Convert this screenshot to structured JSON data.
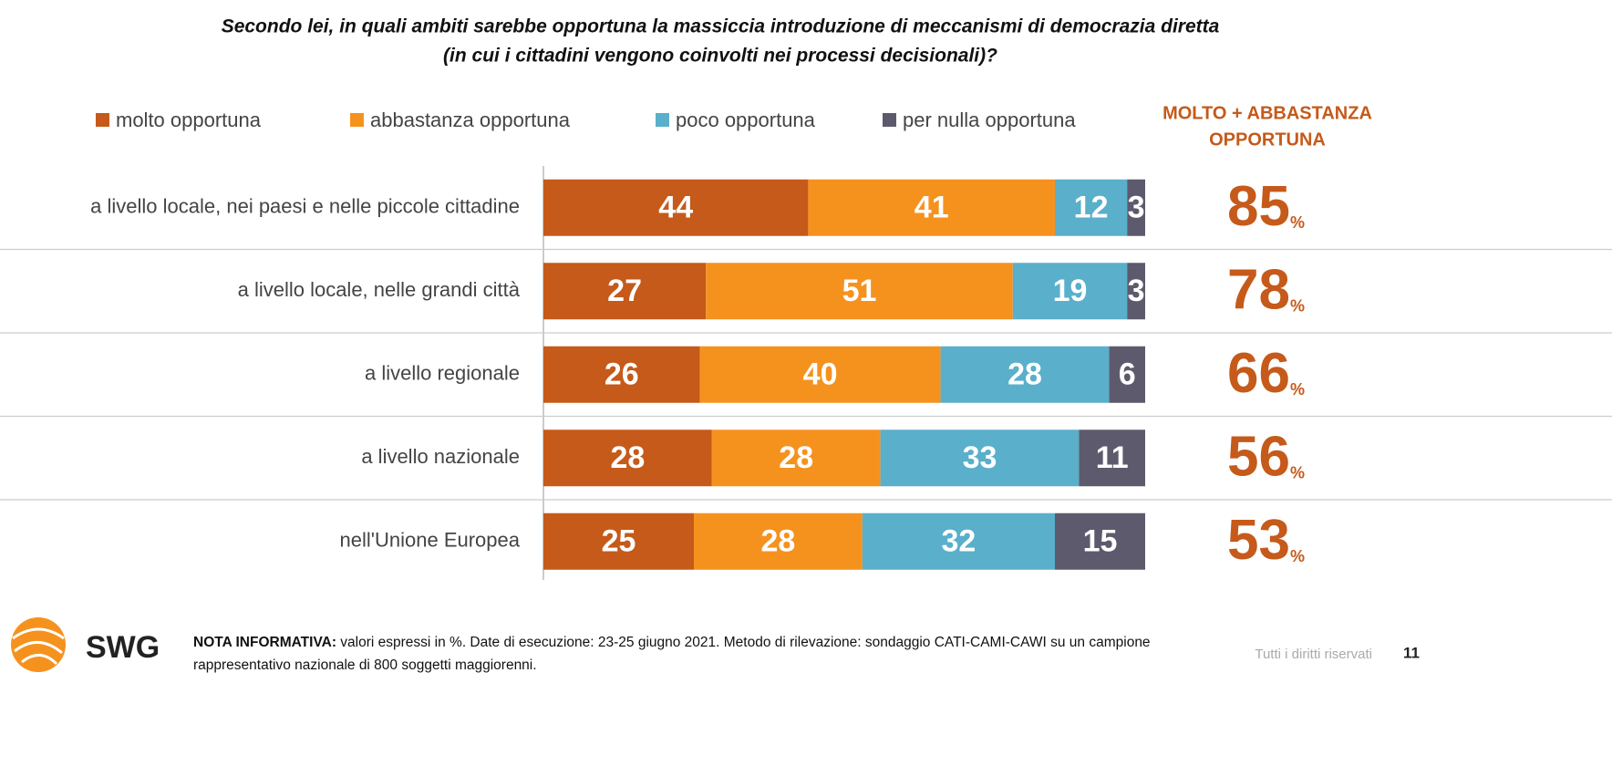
{
  "chart_data": {
    "type": "stacked-bar-horizontal",
    "title": [
      "Secondo lei, in quali ambiti sarebbe opportuna la massiccia introduzione di meccanismi di democrazia diretta",
      "(in cui i cittadini vengono coinvolti nei processi decisionali)?"
    ],
    "categories": [
      "a livello locale, nei paesi e nelle piccole cittadine",
      "a livello locale, nelle grandi città",
      "a livello regionale",
      "a livello nazionale",
      "nell'Unione Europea"
    ],
    "series": [
      {
        "name": "molto opportuna",
        "color": "#c55a1a",
        "values": [
          44,
          27,
          26,
          28,
          25
        ]
      },
      {
        "name": "abbastanza opportuna",
        "color": "#f5921e",
        "values": [
          41,
          51,
          40,
          28,
          28
        ]
      },
      {
        "name": "poco opportuna",
        "color": "#5aafcb",
        "values": [
          12,
          19,
          28,
          33,
          32
        ]
      },
      {
        "name": "per nulla opportuna",
        "color": "#5d5a6d",
        "values": [
          3,
          3,
          6,
          11,
          15
        ]
      }
    ],
    "xlim": [
      0,
      100
    ],
    "legend": "top",
    "totals": {
      "title": [
        "MOLTO + ABBASTANZA",
        "OPPORTUNA"
      ],
      "color": "#c55a1a",
      "values": [
        85,
        78,
        66,
        56,
        53
      ],
      "unit": "%"
    }
  },
  "footer": {
    "logo": "SWG",
    "note_label": "NOTA INFORMATIVA:",
    "note_text": "valori espressi in %. Date di esecuzione: 23-25 giugno 2021. Metodo di rilevazione: sondaggio CATI-CAMI-CAWI su un campione rappresentativo nazionale di 800 soggetti maggiorenni.",
    "rights": "Tutti i diritti riservati",
    "page": "11"
  }
}
